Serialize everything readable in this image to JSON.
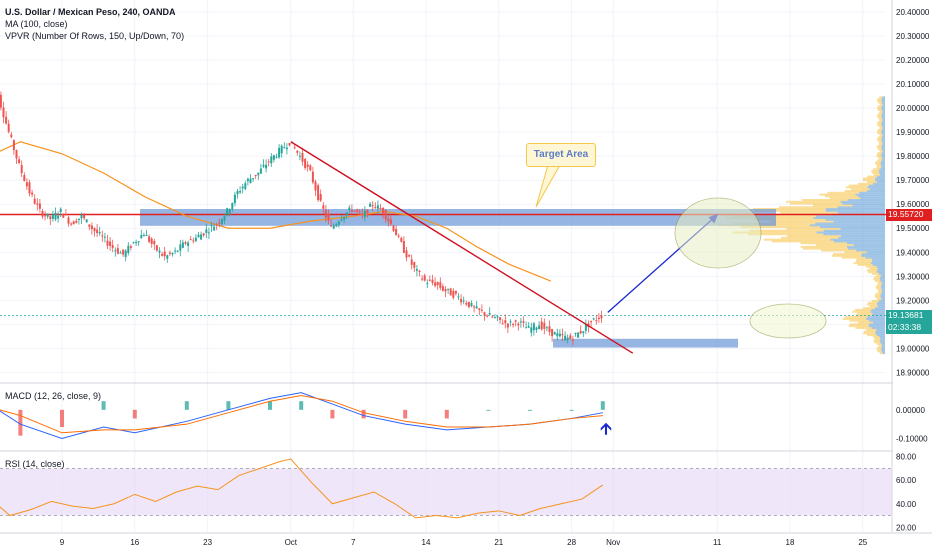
{
  "legend": {
    "symbol": "U.S. Dollar / Mexican Peso, 240, OANDA",
    "ma": "MA (100, close)",
    "vpvr": "VPVR (Number Of Rows, 150, Up/Down, 70)",
    "macd": "MACD (12, 26, close, 9)",
    "rsi": "RSI (14, close)"
  },
  "annotation": {
    "target_label": "Target Area"
  },
  "price_tags": {
    "resistance": "19.55720",
    "last": "19.13681",
    "countdown": "02:33:38"
  },
  "colors": {
    "up": "#26a69a",
    "down": "#ef5350",
    "ma": "#f7931e",
    "resistance": "#e02020",
    "zone": "#6a95d6",
    "vol_up": "#5b9bd5",
    "vol_down": "#f8c246",
    "rsi_band": "#e6d5f5",
    "macd_line": "#2962ff",
    "signal_line": "#ff6d00"
  },
  "chart_data": {
    "type": "line",
    "title": "U.S. Dollar / Mexican Peso, 240, OANDA",
    "price_axis": {
      "ticks": [
        "20.40000",
        "20.30000",
        "20.20000",
        "20.10000",
        "20.00000",
        "19.90000",
        "19.80000",
        "19.70000",
        "19.60000",
        "19.50000",
        "19.40000",
        "19.30000",
        "19.20000",
        "19.10000",
        "19.00000",
        "18.90000"
      ],
      "range": [
        18.86,
        20.45
      ]
    },
    "time_axis": {
      "ticks": [
        "9",
        "16",
        "23",
        "Oct",
        "7",
        "14",
        "21",
        "28",
        "Nov",
        "11",
        "18",
        "25"
      ]
    },
    "price_series": {
      "name": "USD/MXN close",
      "points": [
        [
          "Sep 2",
          20.16
        ],
        [
          "Sep 3",
          20.05
        ],
        [
          "Sep 4",
          19.9
        ],
        [
          "Sep 5",
          19.76
        ],
        [
          "Sep 6",
          19.65
        ],
        [
          "Sep 7",
          19.57
        ],
        [
          "Sep 8",
          19.54
        ],
        [
          "Sep 9",
          19.57
        ],
        [
          "Sep 10",
          19.52
        ],
        [
          "Sep 11",
          19.55
        ],
        [
          "Sep 12",
          19.5
        ],
        [
          "Sep 13",
          19.46
        ],
        [
          "Sep 14",
          19.42
        ],
        [
          "Sep 15",
          19.39
        ],
        [
          "Sep 16",
          19.44
        ],
        [
          "Sep 17",
          19.48
        ],
        [
          "Sep 18",
          19.42
        ],
        [
          "Sep 19",
          19.38
        ],
        [
          "Sep 20",
          19.4
        ],
        [
          "Sep 21",
          19.44
        ],
        [
          "Sep 22",
          19.46
        ],
        [
          "Sep 23",
          19.49
        ],
        [
          "Sep 24",
          19.52
        ],
        [
          "Sep 25",
          19.57
        ],
        [
          "Sep 26",
          19.65
        ],
        [
          "Sep 27",
          19.7
        ],
        [
          "Sep 28",
          19.73
        ],
        [
          "Sep 29",
          19.78
        ],
        [
          "Sep 30",
          19.82
        ],
        [
          "Oct 1",
          19.86
        ],
        [
          "Oct 2",
          19.8
        ],
        [
          "Oct 3",
          19.73
        ],
        [
          "Oct 4",
          19.6
        ],
        [
          "Oct 5",
          19.5
        ],
        [
          "Oct 6",
          19.55
        ],
        [
          "Oct 7",
          19.58
        ],
        [
          "Oct 8",
          19.55
        ],
        [
          "Oct 9",
          19.6
        ],
        [
          "Oct 10",
          19.57
        ],
        [
          "Oct 11",
          19.5
        ],
        [
          "Oct 12",
          19.41
        ],
        [
          "Oct 13",
          19.33
        ],
        [
          "Oct 14",
          19.28
        ],
        [
          "Oct 15",
          19.27
        ],
        [
          "Oct 16",
          19.24
        ],
        [
          "Oct 17",
          19.22
        ],
        [
          "Oct 18",
          19.19
        ],
        [
          "Oct 19",
          19.16
        ],
        [
          "Oct 20",
          19.14
        ],
        [
          "Oct 21",
          19.12
        ],
        [
          "Oct 22",
          19.1
        ],
        [
          "Oct 23",
          19.11
        ],
        [
          "Oct 24",
          19.08
        ],
        [
          "Oct 25",
          19.1
        ],
        [
          "Oct 26",
          19.07
        ],
        [
          "Oct 27",
          19.05
        ],
        [
          "Oct 28",
          19.04
        ],
        [
          "Oct 29",
          19.07
        ],
        [
          "Oct 30",
          19.11
        ],
        [
          "Oct 31",
          19.137
        ]
      ]
    },
    "ma_series": {
      "name": "MA (100, close)",
      "points": [
        [
          "Sep 2",
          19.8
        ],
        [
          "Sep 5",
          19.86
        ],
        [
          "Sep 9",
          19.81
        ],
        [
          "Sep 13",
          19.73
        ],
        [
          "Sep 17",
          19.63
        ],
        [
          "Sep 21",
          19.55
        ],
        [
          "Sep 25",
          19.5
        ],
        [
          "Sep 29",
          19.5
        ],
        [
          "Oct 3",
          19.53
        ],
        [
          "Oct 7",
          19.55
        ],
        [
          "Oct 10",
          19.57
        ],
        [
          "Oct 13",
          19.55
        ],
        [
          "Oct 16",
          19.5
        ],
        [
          "Oct 19",
          19.42
        ],
        [
          "Oct 22",
          19.35
        ],
        [
          "Oct 26",
          19.28
        ]
      ]
    },
    "annotations": {
      "resistance_level": 19.5572,
      "last_price": 19.13681,
      "target_zone": [
        19.51,
        19.58
      ],
      "support_zone": [
        19.02,
        19.04
      ],
      "downtrend_line": [
        [
          "Oct 1",
          19.86
        ],
        [
          "Oct 31",
          18.98
        ]
      ],
      "projection": [
        [
          "Oct 31",
          19.15
        ],
        [
          "Nov 7",
          19.45
        ],
        [
          "Nov 9",
          19.57
        ]
      ]
    },
    "macd": {
      "name": "MACD (12, 26, close, 9)",
      "ticks": [
        "0.00000",
        "-0.10000"
      ],
      "range": [
        -0.14,
        0.09
      ],
      "macd_points": [
        [
          "Sep 2",
          0.02
        ],
        [
          "Sep 5",
          -0.05
        ],
        [
          "Sep 9",
          -0.1
        ],
        [
          "Sep 13",
          -0.06
        ],
        [
          "Sep 16",
          -0.08
        ],
        [
          "Sep 21",
          -0.04
        ],
        [
          "Sep 25",
          0.0
        ],
        [
          "Sep 29",
          0.04
        ],
        [
          "Oct 2",
          0.06
        ],
        [
          "Oct 5",
          0.02
        ],
        [
          "Oct 8",
          -0.02
        ],
        [
          "Oct 12",
          -0.05
        ],
        [
          "Oct 16",
          -0.07
        ],
        [
          "Oct 20",
          -0.06
        ],
        [
          "Oct 24",
          -0.05
        ],
        [
          "Oct 28",
          -0.03
        ],
        [
          "Oct 31",
          -0.01
        ]
      ],
      "signal_points": [
        [
          "Sep 2",
          0.01
        ],
        [
          "Sep 5",
          -0.02
        ],
        [
          "Sep 9",
          -0.08
        ],
        [
          "Sep 13",
          -0.07
        ],
        [
          "Sep 16",
          -0.07
        ],
        [
          "Sep 21",
          -0.05
        ],
        [
          "Sep 25",
          -0.01
        ],
        [
          "Sep 29",
          0.03
        ],
        [
          "Oct 2",
          0.05
        ],
        [
          "Oct 5",
          0.03
        ],
        [
          "Oct 8",
          -0.01
        ],
        [
          "Oct 12",
          -0.04
        ],
        [
          "Oct 16",
          -0.06
        ],
        [
          "Oct 20",
          -0.06
        ],
        [
          "Oct 24",
          -0.05
        ],
        [
          "Oct 28",
          -0.03
        ],
        [
          "Oct 31",
          -0.02
        ]
      ]
    },
    "rsi": {
      "name": "RSI (14, close)",
      "ticks": [
        "80.00",
        "60.00",
        "40.00",
        "20.00"
      ],
      "range": [
        16,
        84
      ],
      "band": [
        30,
        70
      ],
      "points": [
        [
          "Sep 2",
          45
        ],
        [
          "Sep 4",
          30
        ],
        [
          "Sep 6",
          35
        ],
        [
          "Sep 8",
          42
        ],
        [
          "Sep 10",
          38
        ],
        [
          "Sep 12",
          36
        ],
        [
          "Sep 14",
          40
        ],
        [
          "Sep 16",
          48
        ],
        [
          "Sep 18",
          42
        ],
        [
          "Sep 20",
          50
        ],
        [
          "Sep 22",
          55
        ],
        [
          "Sep 24",
          52
        ],
        [
          "Sep 26",
          64
        ],
        [
          "Sep 28",
          70
        ],
        [
          "Sep 30",
          76
        ],
        [
          "Oct 1",
          78
        ],
        [
          "Oct 3",
          58
        ],
        [
          "Oct 5",
          40
        ],
        [
          "Oct 7",
          45
        ],
        [
          "Oct 9",
          50
        ],
        [
          "Oct 11",
          40
        ],
        [
          "Oct 13",
          28
        ],
        [
          "Oct 15",
          30
        ],
        [
          "Oct 17",
          28
        ],
        [
          "Oct 19",
          32
        ],
        [
          "Oct 21",
          34
        ],
        [
          "Oct 23",
          30
        ],
        [
          "Oct 25",
          36
        ],
        [
          "Oct 27",
          40
        ],
        [
          "Oct 29",
          44
        ],
        [
          "Oct 31",
          56
        ]
      ]
    }
  }
}
